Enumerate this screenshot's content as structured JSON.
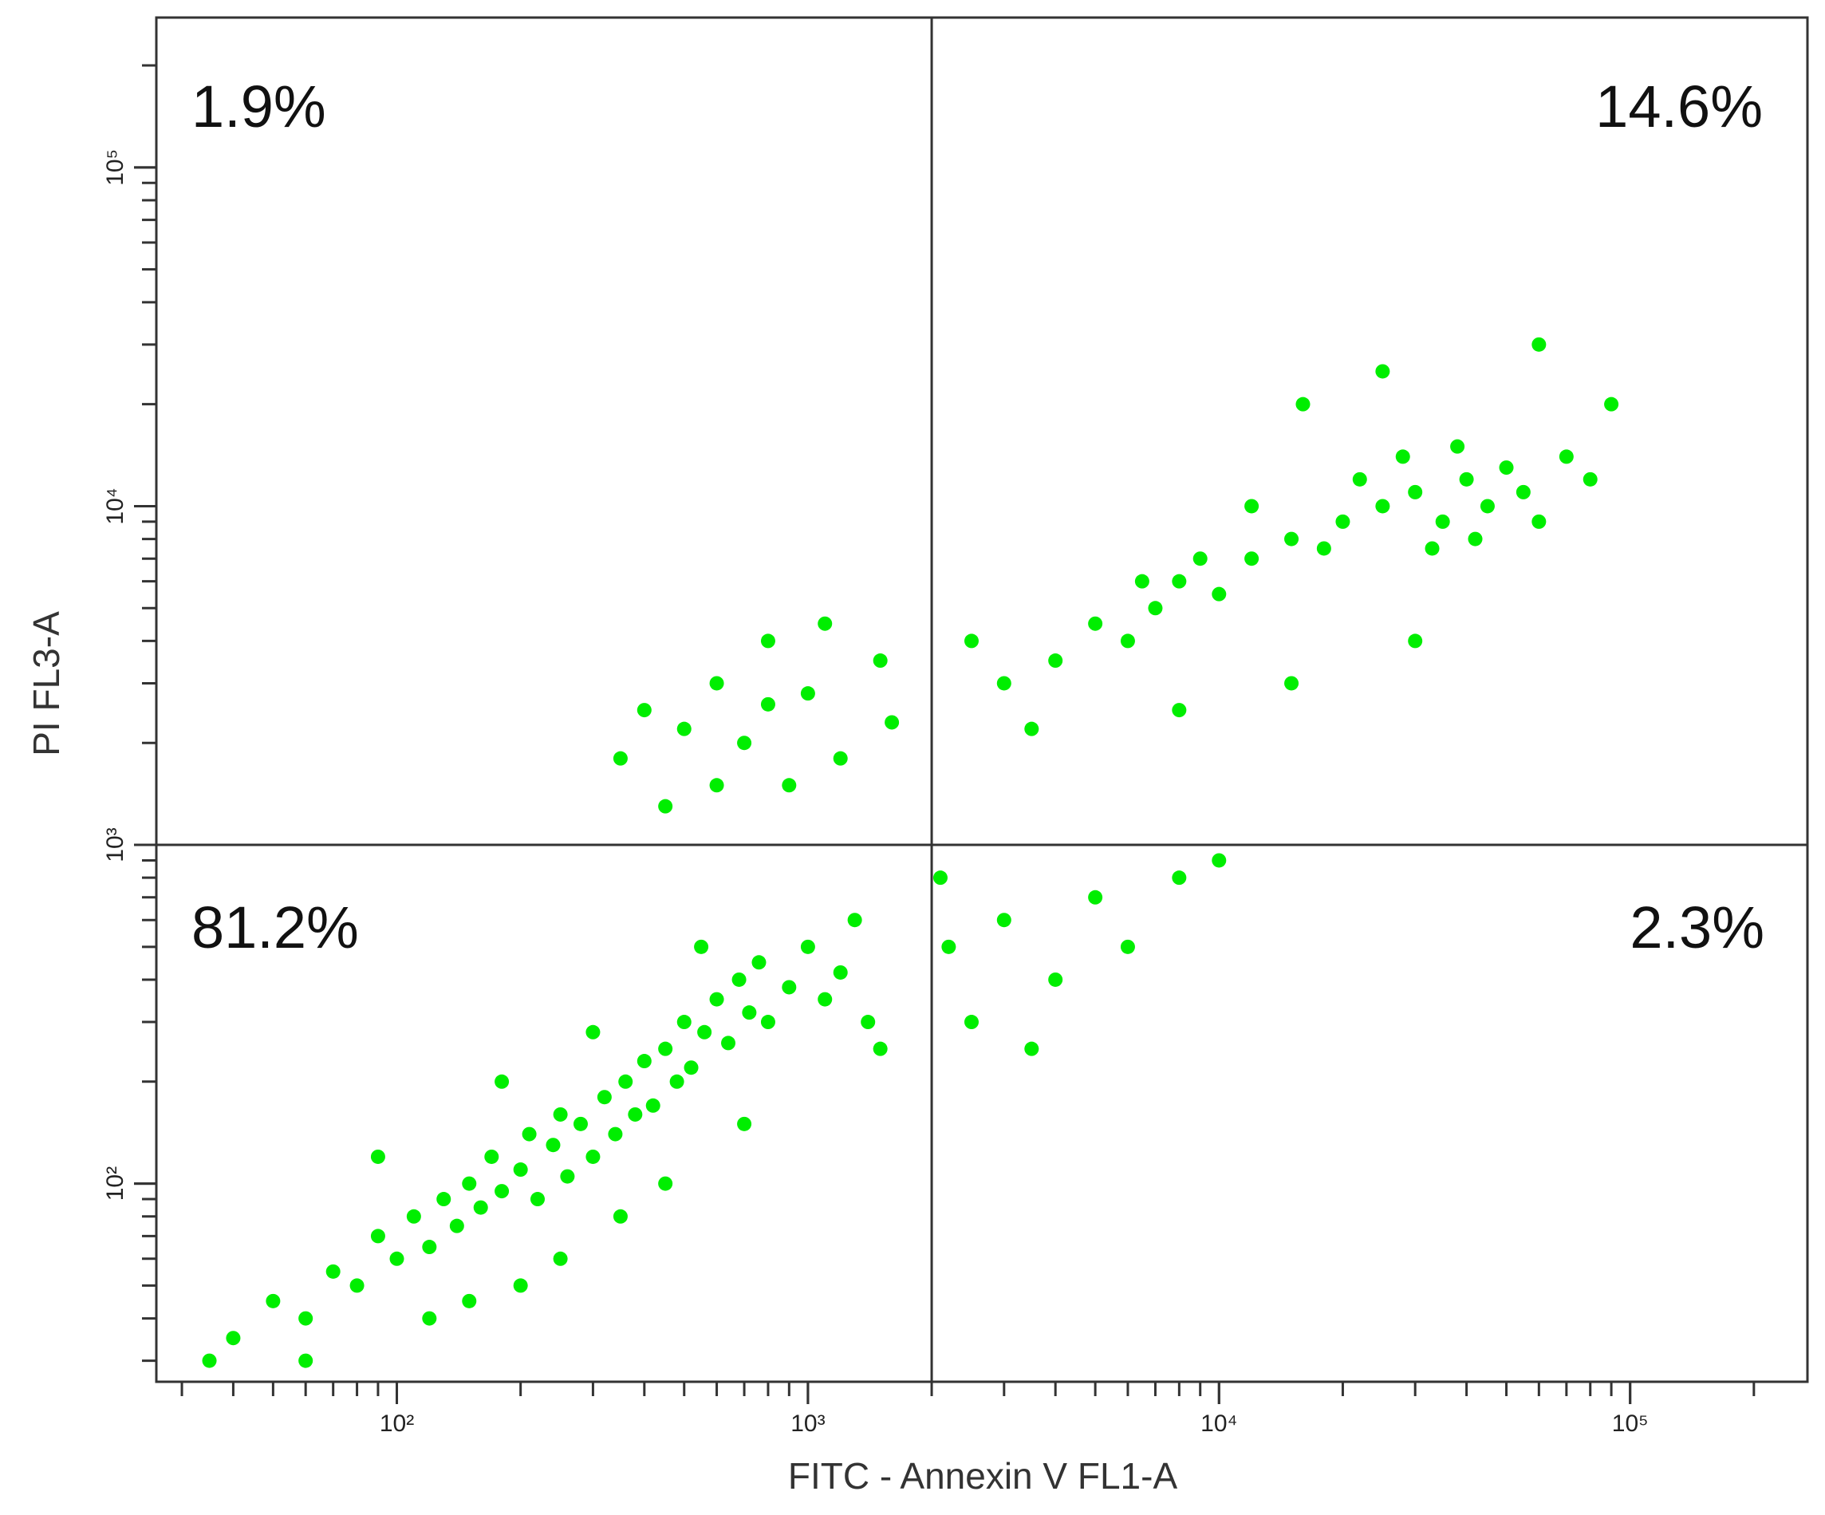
{
  "chart_data": {
    "type": "scatter",
    "xlabel": "FITC - Annexin V FL1-A",
    "ylabel": "PI FL3-A",
    "log_x": true,
    "log_y": true,
    "xlim": [
      26,
      270000
    ],
    "ylim": [
      26,
      277000
    ],
    "xticks": [
      {
        "value": 100,
        "label": "10²"
      },
      {
        "value": 1000,
        "label": "10³"
      },
      {
        "value": 10000,
        "label": "10⁴"
      },
      {
        "value": 100000,
        "label": "10⁵"
      }
    ],
    "yticks": [
      {
        "value": 100,
        "label": "10²"
      },
      {
        "value": 1000,
        "label": "10³"
      },
      {
        "value": 10000,
        "label": "10⁴"
      },
      {
        "value": 100000,
        "label": "10⁵"
      }
    ],
    "minor_ticks": true,
    "gate_x": 2000,
    "gate_y": 1000,
    "quadrant_labels": [
      "1.9%",
      "14.6%",
      "81.2%",
      "2.3%"
    ],
    "color": "#00ee00",
    "x": [
      40,
      50,
      60,
      70,
      80,
      90,
      100,
      110,
      120,
      130,
      140,
      150,
      160,
      170,
      180,
      200,
      210,
      220,
      240,
      250,
      260,
      280,
      300,
      320,
      340,
      360,
      380,
      400,
      420,
      450,
      480,
      500,
      520,
      560,
      600,
      640,
      680,
      720,
      760,
      800,
      900,
      1000,
      1100,
      1200,
      1400,
      150,
      250,
      350,
      60,
      120,
      200,
      450,
      700,
      1500,
      90,
      180,
      300,
      550,
      1300,
      35,
      4000,
      5000,
      6000,
      7000,
      8000,
      10000,
      12000,
      15000,
      18000,
      20000,
      25000,
      30000,
      35000,
      40000,
      45000,
      50000,
      55000,
      28000,
      38000,
      22000,
      9000,
      6500,
      3000,
      2500,
      60000,
      70000,
      80000,
      42000,
      33000,
      12000,
      16000,
      25000,
      60000,
      90000,
      3500,
      8000,
      15000,
      30000,
      350,
      400,
      500,
      600,
      700,
      800,
      900,
      1000,
      1200,
      1500,
      450,
      600,
      1100,
      1600,
      800,
      2200,
      2500,
      3000,
      4000,
      5000,
      6000,
      8000,
      3500,
      2100,
      10000
    ],
    "values": [
      35,
      45,
      40,
      55,
      50,
      70,
      60,
      80,
      65,
      90,
      75,
      100,
      85,
      120,
      95,
      110,
      140,
      90,
      130,
      160,
      105,
      150,
      120,
      180,
      140,
      200,
      160,
      230,
      170,
      250,
      200,
      300,
      220,
      280,
      350,
      260,
      400,
      320,
      450,
      300,
      380,
      500,
      350,
      420,
      300,
      45,
      60,
      80,
      30,
      40,
      50,
      100,
      150,
      250,
      120,
      200,
      280,
      500,
      600,
      30,
      3500,
      4500,
      4000,
      5000,
      6000,
      5500,
      7000,
      8000,
      7500,
      9000,
      10000,
      11000,
      9000,
      12000,
      10000,
      13000,
      11000,
      14000,
      15000,
      12000,
      7000,
      6000,
      3000,
      4000,
      9000,
      14000,
      12000,
      8000,
      7500,
      10000,
      20000,
      25000,
      30000,
      20000,
      2200,
      2500,
      3000,
      4000,
      1800,
      2500,
      2200,
      3000,
      2000,
      2600,
      1500,
      2800,
      1800,
      3500,
      1300,
      1500,
      4500,
      2300,
      4000,
      500,
      300,
      600,
      400,
      700,
      500,
      800,
      250,
      800,
      900
    ]
  }
}
